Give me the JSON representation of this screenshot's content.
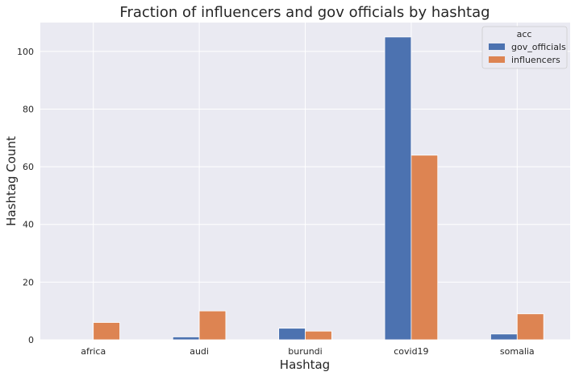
{
  "chart_data": {
    "type": "bar",
    "title": "Fraction of influencers and gov officials by hashtag",
    "xlabel": "Hashtag",
    "ylabel": "Hashtag Count",
    "categories": [
      "africa",
      "audi",
      "burundi",
      "covid19",
      "somalia"
    ],
    "series": [
      {
        "name": "gov_officials",
        "values": [
          0,
          1,
          4,
          105,
          2
        ],
        "color": "#4c72b0"
      },
      {
        "name": "influencers",
        "values": [
          6,
          10,
          3,
          64,
          9
        ],
        "color": "#dd8452"
      }
    ],
    "ylim": [
      0,
      110
    ],
    "yticks": [
      0,
      20,
      40,
      60,
      80,
      100
    ],
    "grid": true,
    "legend": {
      "title": "acc",
      "placement": "top-right"
    },
    "colors": {
      "background": "#eaeaf2",
      "grid": "#ffffff",
      "text": "#262626"
    }
  }
}
